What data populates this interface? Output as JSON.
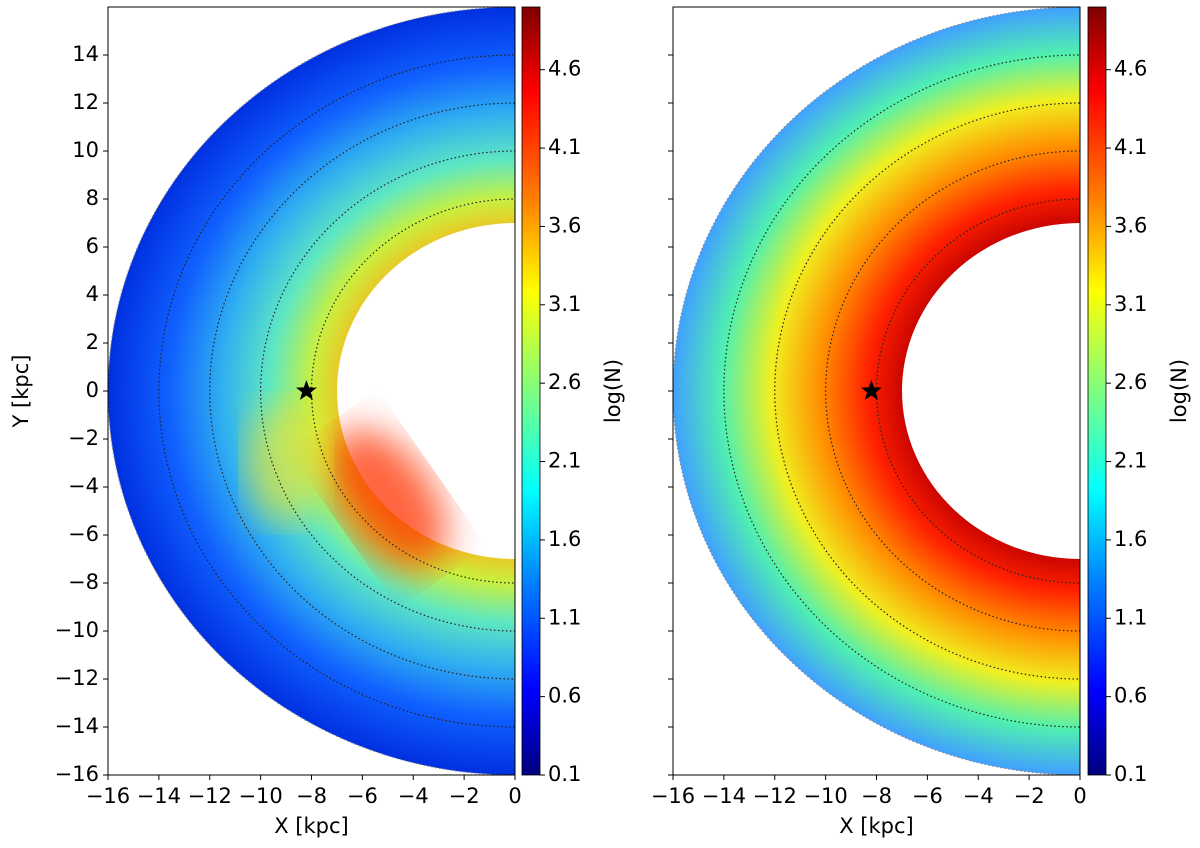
{
  "chart_data": [
    {
      "type": "heatmap",
      "xlabel": "X [kpc]",
      "ylabel": "Y [kpc]",
      "xlim": [
        -16,
        0
      ],
      "ylim": [
        -16,
        16
      ],
      "xticks": [
        {
          "value": -16,
          "label": "−16"
        },
        {
          "value": -14,
          "label": "−14"
        },
        {
          "value": -12,
          "label": "−12"
        },
        {
          "value": -10,
          "label": "−10"
        },
        {
          "value": -8,
          "label": "−8"
        },
        {
          "value": -6,
          "label": "−6"
        },
        {
          "value": -4,
          "label": "−4"
        },
        {
          "value": -2,
          "label": "−2"
        },
        0
      ],
      "yticks": [
        {
          "value": -16,
          "label": "−16"
        },
        {
          "value": -14,
          "label": "−14"
        },
        {
          "value": -12,
          "label": "−12"
        },
        {
          "value": -10,
          "label": "−10"
        },
        {
          "value": -8,
          "label": "−8"
        },
        {
          "value": -6,
          "label": "−6"
        },
        {
          "value": -4,
          "label": "−4"
        },
        {
          "value": -2,
          "label": "−2"
        },
        0,
        2,
        4,
        6,
        8,
        10,
        12,
        14
      ],
      "ytick_labels": true,
      "rings": [
        8,
        10,
        12,
        14,
        16
      ],
      "sun": {
        "x": -8.2,
        "y": 0
      },
      "colorbar": {
        "label": "log(N)",
        "colormap": "jet",
        "lim": [
          0.1,
          5.0
        ],
        "ticks": [
          0.1,
          0.6,
          1.1,
          1.6,
          2.1,
          2.6,
          3.1,
          3.6,
          4.1,
          4.6
        ]
      }
    },
    {
      "type": "heatmap",
      "xlabel": "X [kpc]",
      "xlim": [
        -16,
        0
      ],
      "ylim": [
        -16,
        16
      ],
      "xticks": [
        {
          "value": -16,
          "label": "−16"
        },
        {
          "value": -14,
          "label": "−14"
        },
        {
          "value": -12,
          "label": "−12"
        },
        {
          "value": -10,
          "label": "−10"
        },
        {
          "value": -8,
          "label": "−8"
        },
        {
          "value": -6,
          "label": "−6"
        },
        {
          "value": -4,
          "label": "−4"
        },
        {
          "value": -2,
          "label": "−2"
        },
        0
      ],
      "yticks": [
        -16,
        -14,
        -12,
        -10,
        -8,
        -6,
        -4,
        -2,
        0,
        2,
        4,
        6,
        8,
        10,
        12,
        14
      ],
      "ytick_labels": false,
      "rings": [
        8,
        10,
        12,
        14,
        16
      ],
      "sun": {
        "x": -8.2,
        "y": 0
      },
      "colorbar": {
        "label": "log(N)",
        "colormap": "jet",
        "lim": [
          0.1,
          5.0
        ],
        "ticks": [
          0.1,
          0.6,
          1.1,
          1.6,
          2.1,
          2.6,
          3.1,
          3.6,
          4.1,
          4.6
        ]
      }
    }
  ]
}
